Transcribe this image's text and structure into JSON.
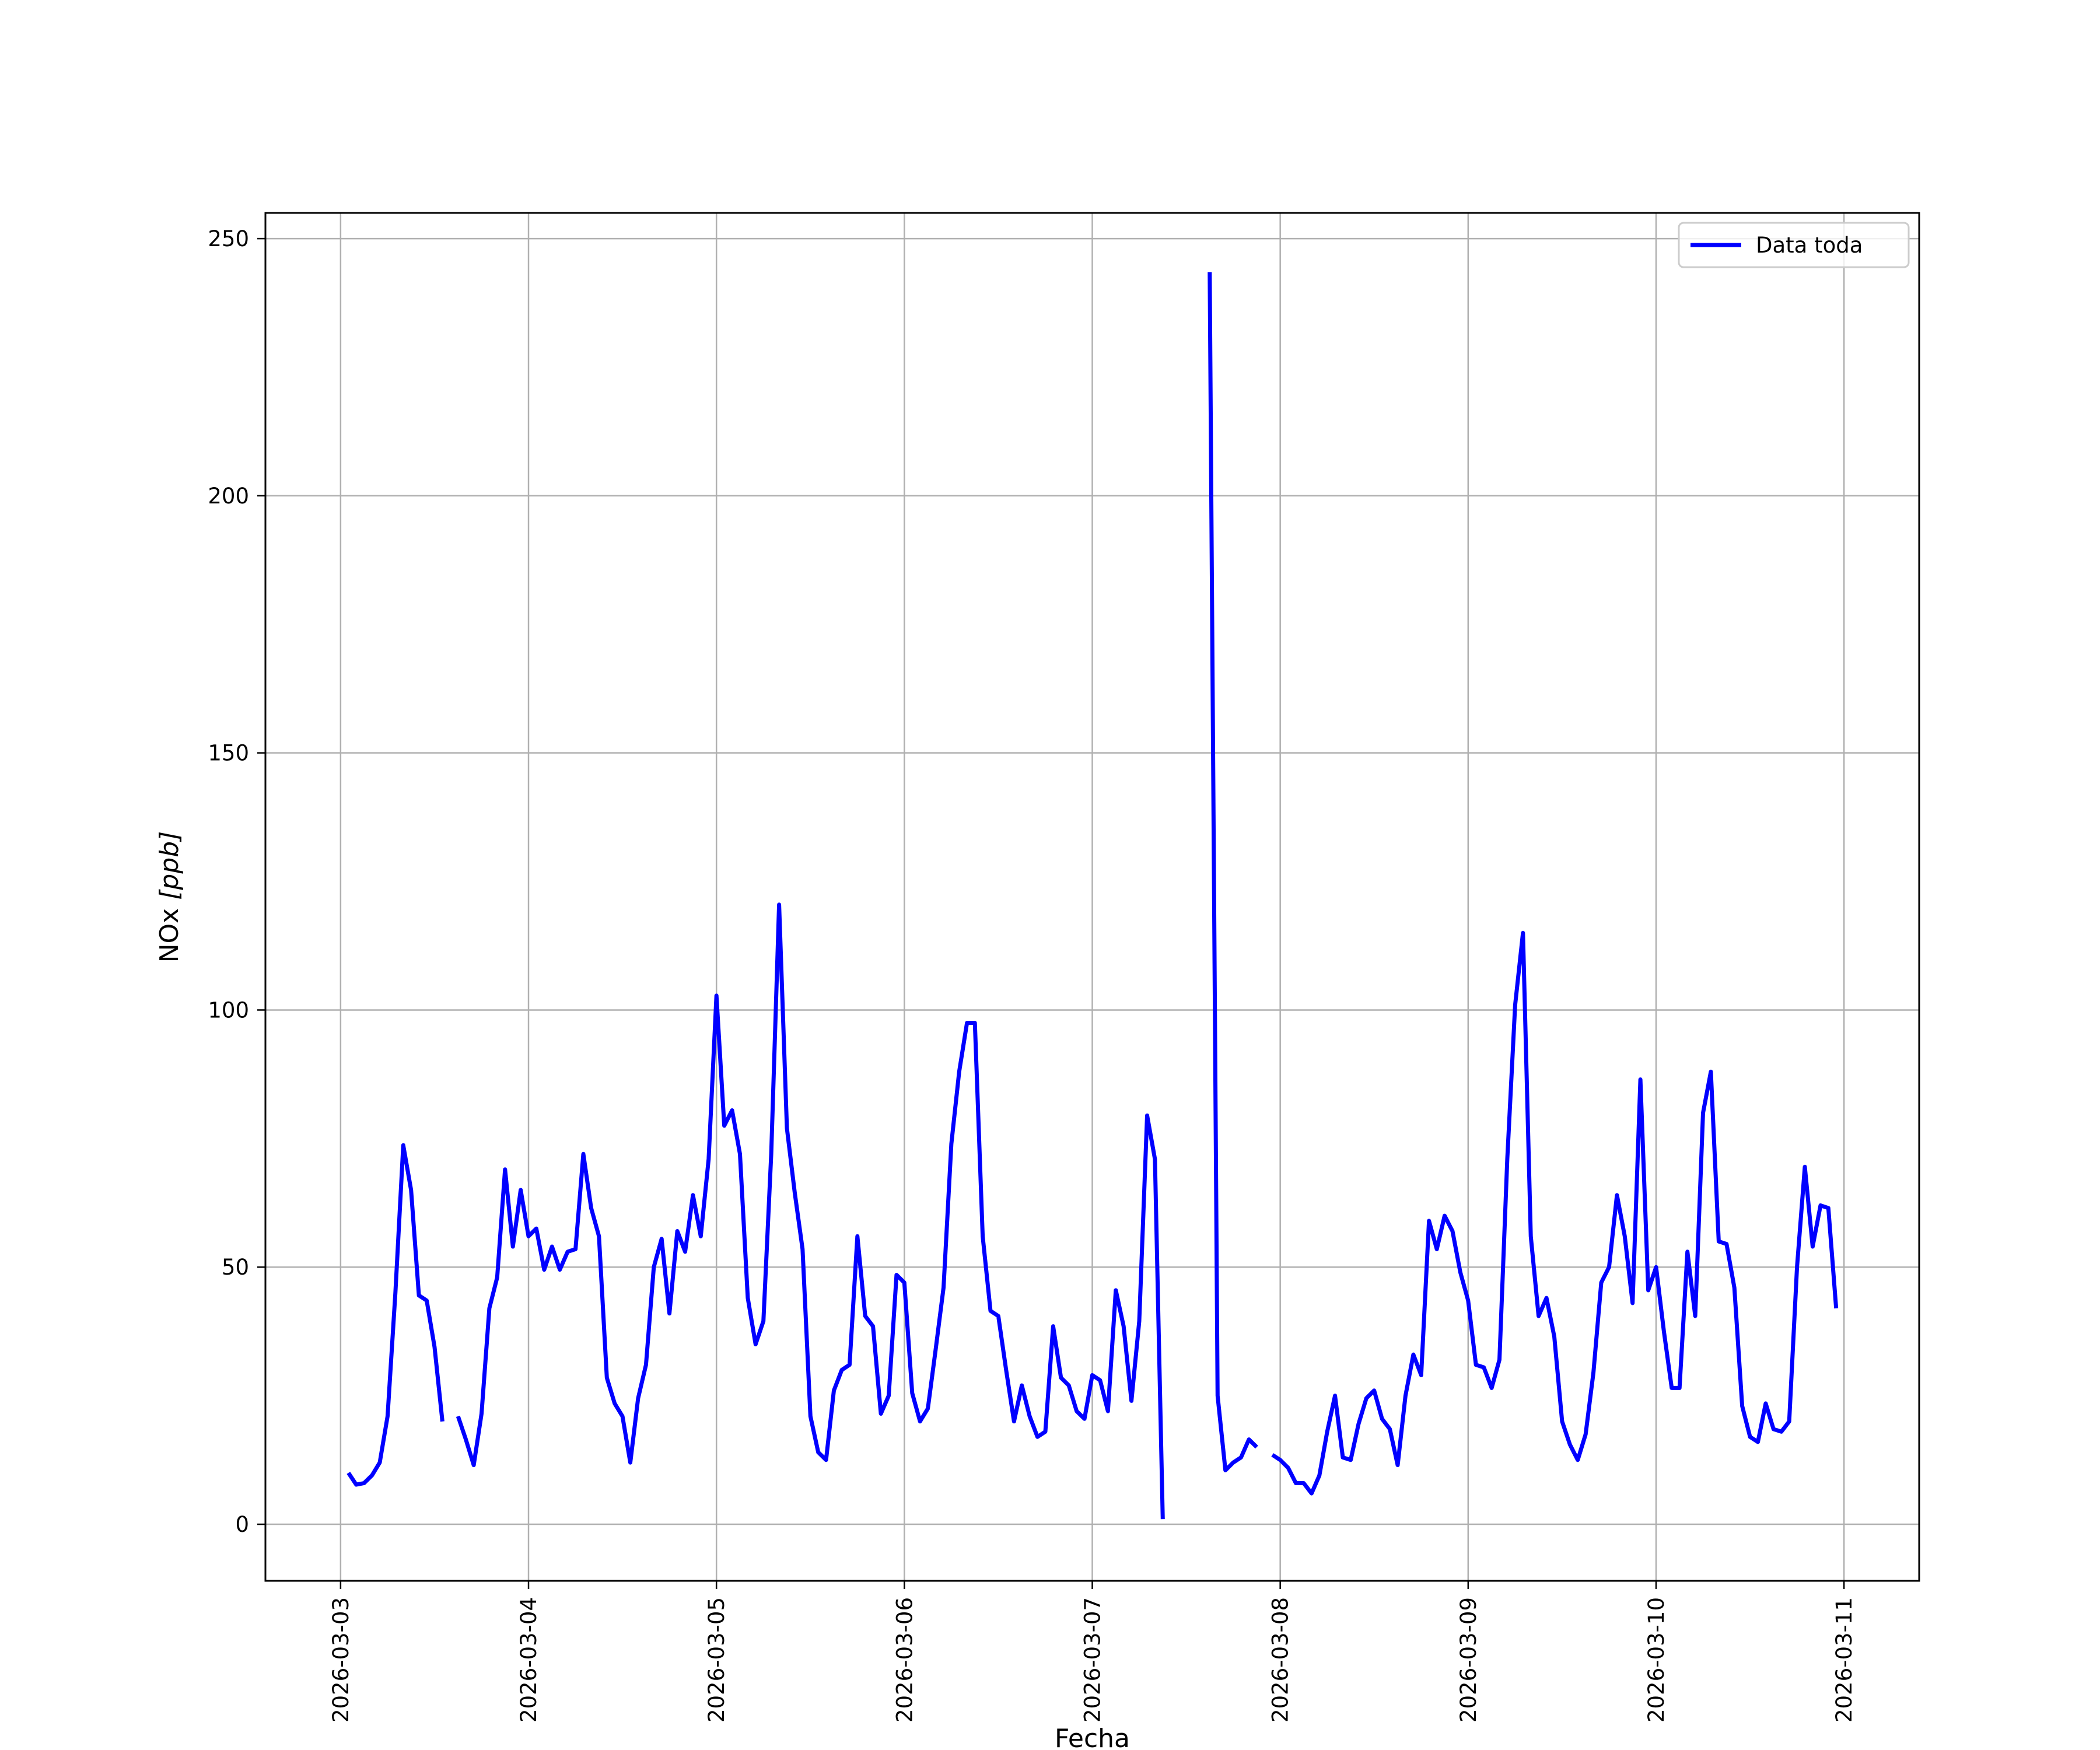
{
  "chart_data": {
    "type": "line",
    "xlabel": "Fecha",
    "ylabel_main": "NOx ",
    "ylabel_unit": "[ppb]",
    "x_tick_labels": [
      "2026-03-03",
      "2026-03-04",
      "2026-03-05",
      "2026-03-06",
      "2026-03-07",
      "2026-03-08",
      "2026-03-09",
      "2026-03-10",
      "2026-03-11"
    ],
    "xlim": [
      "2026-03-02T14:24",
      "2026-03-11T09:36"
    ],
    "y_ticks": [
      0,
      50,
      100,
      150,
      200,
      250
    ],
    "ylim": [
      -11,
      255
    ],
    "grid": true,
    "legend_position": "top-right",
    "series": [
      {
        "name": "Data toda",
        "color": "#0000ff",
        "x_start": "2026-03-03T01:00",
        "interval_hours": 1,
        "values": [
          10,
          7.7,
          8,
          9.5,
          12,
          21,
          45,
          73.7,
          65,
          44.5,
          43.5,
          34.5,
          20,
          null,
          21,
          16.5,
          11.5,
          21.5,
          42,
          48,
          69,
          54,
          65,
          56,
          57.5,
          49.5,
          54,
          49.5,
          53,
          53.5,
          72,
          61.5,
          56,
          28.5,
          23.5,
          21,
          12,
          24.5,
          31,
          50,
          55.5,
          41,
          57,
          53,
          64,
          56,
          71,
          102.8,
          77.5,
          80.5,
          72,
          44,
          35,
          39.5,
          72,
          120.5,
          77,
          64.5,
          53.5,
          21,
          14,
          12.5,
          26,
          30,
          31,
          56,
          40.5,
          38.5,
          21.5,
          25,
          48.5,
          47,
          25.5,
          20,
          22.5,
          34,
          46,
          74,
          88,
          97.5,
          97.5,
          56,
          41.5,
          40.5,
          30,
          20,
          27,
          21,
          17,
          18,
          38.5,
          28.5,
          27,
          22,
          20.5,
          29,
          28,
          22,
          45.5,
          38.5,
          24,
          39.5,
          79.5,
          71,
          1,
          null,
          null,
          null,
          null,
          null,
          243.5,
          25,
          10.5,
          12,
          13,
          16.5,
          15,
          null,
          13.5,
          12.5,
          11,
          8,
          8,
          6,
          9.5,
          18,
          25,
          13,
          12.5,
          19.5,
          24.5,
          26,
          20.5,
          18.5,
          11.5,
          25,
          33,
          29,
          59,
          53.5,
          60,
          57,
          49,
          43.5,
          31,
          30.5,
          26.5,
          32,
          71,
          101,
          115,
          56,
          40.5,
          44,
          36.5,
          20,
          15.5,
          12.5,
          17.5,
          29.5,
          47,
          50,
          64,
          56,
          43,
          86.5,
          45.5,
          50,
          37.5,
          26.5,
          26.5,
          53,
          40.5,
          80,
          88,
          55,
          54.5,
          46,
          23,
          17,
          16,
          23.5,
          18.5,
          18,
          20,
          50,
          69.5,
          54,
          62,
          61.5,
          42
        ]
      }
    ]
  }
}
